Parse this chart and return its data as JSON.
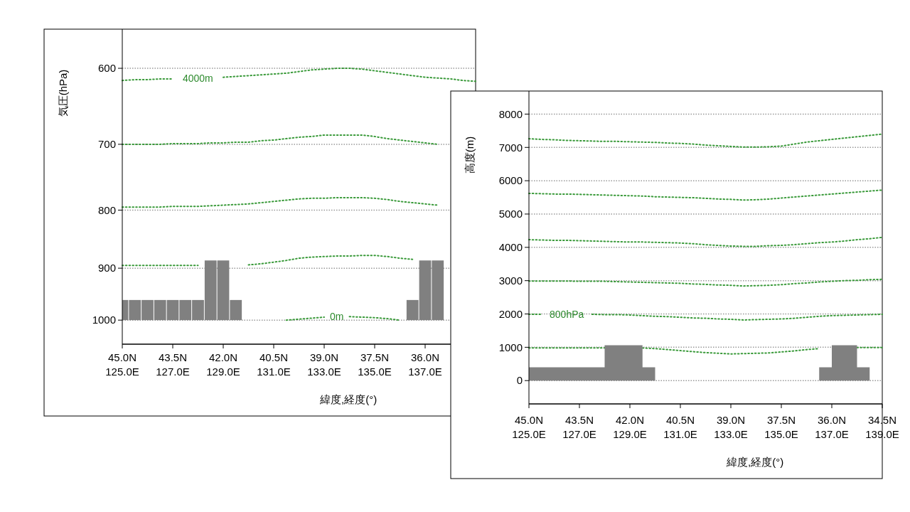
{
  "chart_data": [
    {
      "type": "line",
      "ylabel": "気圧(hPa)",
      "xlabel": "緯度,経度(°)",
      "log": true,
      "grid": "y",
      "line_style": "dotted",
      "ylim": [
        1050,
        555
      ],
      "yticks": [
        600,
        700,
        800,
        900,
        1000
      ],
      "categories": [
        "45.0N\n125.0E",
        null,
        null,
        null,
        "43.5N\n127.0E",
        null,
        null,
        null,
        "42.0N\n129.0E",
        null,
        null,
        null,
        "40.5N\n131.0E",
        null,
        null,
        null,
        "39.0N\n133.0E",
        null,
        null,
        null,
        "37.5N\n135.0E",
        null,
        null,
        null,
        "36.0N\n137.0E",
        null,
        null,
        null,
        null
      ],
      "series": [
        {
          "color": "#3a9a3a",
          "values": [
            615,
            614,
            614,
            613,
            613,
            null,
            null,
            null,
            611,
            610,
            609,
            608,
            607,
            606,
            604,
            602,
            601,
            600,
            600,
            601,
            603,
            605,
            607,
            609,
            611,
            612,
            613,
            615,
            616
          ]
        },
        {
          "color": "#3a9a3a",
          "values": [
            700,
            700,
            700,
            700,
            699,
            699,
            699,
            698,
            698,
            697,
            697,
            695,
            694,
            692,
            690,
            689,
            687,
            687,
            687,
            687,
            689,
            692,
            694,
            696,
            698,
            700,
            null,
            null,
            null
          ]
        },
        {
          "color": "#3a9a3a",
          "values": [
            795,
            795,
            795,
            795,
            794,
            794,
            794,
            793,
            792,
            791,
            790,
            788,
            786,
            784,
            782,
            781,
            781,
            780,
            780,
            780,
            781,
            783,
            786,
            788,
            790,
            792,
            null,
            null,
            null
          ]
        },
        {
          "color": "#3a9a3a",
          "values": [
            895,
            895,
            895,
            895,
            895,
            895,
            895,
            null,
            null,
            null,
            894,
            892,
            889,
            886,
            882,
            880,
            879,
            878,
            878,
            877,
            877,
            879,
            882,
            884,
            null,
            null,
            null,
            null,
            null
          ]
        },
        {
          "color": "#3a9a3a",
          "values": [
            null,
            null,
            null,
            null,
            null,
            null,
            null,
            null,
            null,
            null,
            null,
            null,
            null,
            1000,
            998,
            996,
            994,
            null,
            993,
            994,
            995,
            997,
            1000,
            null,
            null,
            null,
            null,
            null,
            null
          ]
        },
        {
          "type": "bar",
          "color": "#808080",
          "values": [
            -40,
            -40,
            -40,
            -40,
            -40,
            -40,
            -40,
            -114,
            -114,
            -40,
            null,
            null,
            null,
            null,
            null,
            null,
            null,
            null,
            null,
            null,
            null,
            null,
            null,
            -40,
            -114,
            -114,
            null,
            null,
            null
          ],
          "base": [
            1000,
            1000,
            1000,
            1000,
            1000,
            1000,
            1000,
            1000,
            1000,
            1000,
            null,
            null,
            null,
            null,
            null,
            null,
            null,
            null,
            null,
            null,
            null,
            null,
            null,
            1000,
            1000,
            1000,
            null,
            null,
            null
          ]
        }
      ],
      "annotations": [
        "4000m",
        "0m"
      ]
    },
    {
      "type": "line",
      "ylabel": "高度(m)",
      "xlabel": "緯度,経度(°)",
      "grid": "y",
      "line_style": "dotted",
      "ylim": [
        -700,
        8650
      ],
      "yticks": [
        0,
        1000,
        2000,
        3000,
        4000,
        5000,
        6000,
        7000,
        8000
      ],
      "categories": [
        "45.0N\n125.0E",
        null,
        null,
        null,
        "43.5N\n127.0E",
        null,
        null,
        null,
        "42.0N\n129.0E",
        null,
        null,
        null,
        "40.5N\n131.0E",
        null,
        null,
        null,
        "39.0N\n133.0E",
        null,
        null,
        null,
        "37.5N\n135.0E",
        null,
        null,
        null,
        "36.0N\n137.0E",
        null,
        null,
        null,
        "34.5N\n139.0E"
      ],
      "series": [
        {
          "color": "#3a9a3a",
          "values": [
            7260,
            7240,
            7230,
            7210,
            7200,
            7190,
            7180,
            7180,
            7170,
            7160,
            7150,
            7130,
            7120,
            7100,
            7070,
            7050,
            7030,
            7010,
            7010,
            7020,
            7040,
            7100,
            7160,
            7200,
            7240,
            7280,
            7320,
            7360,
            7400
          ]
        },
        {
          "color": "#3a9a3a",
          "values": [
            5620,
            5610,
            5600,
            5600,
            5590,
            5580,
            5570,
            5560,
            5550,
            5540,
            5520,
            5510,
            5500,
            5490,
            5470,
            5450,
            5440,
            5420,
            5430,
            5450,
            5480,
            5510,
            5540,
            5570,
            5600,
            5630,
            5660,
            5690,
            5720
          ]
        },
        {
          "color": "#3a9a3a",
          "values": [
            4230,
            4220,
            4210,
            4210,
            4200,
            4190,
            4180,
            4170,
            4160,
            4160,
            4150,
            4140,
            4130,
            4110,
            4080,
            4060,
            4040,
            4030,
            4030,
            4050,
            4060,
            4080,
            4110,
            4140,
            4160,
            4190,
            4230,
            4260,
            4300
          ]
        },
        {
          "color": "#3a9a3a",
          "values": [
            2990,
            2990,
            2990,
            2990,
            2980,
            2980,
            2980,
            2970,
            2960,
            2950,
            2940,
            2930,
            2920,
            2900,
            2890,
            2870,
            2860,
            2840,
            2850,
            2860,
            2880,
            2910,
            2930,
            2960,
            2980,
            3000,
            3010,
            3030,
            3040
          ]
        },
        {
          "color": "#3a9a3a",
          "values": [
            1990,
            1990,
            null,
            null,
            null,
            1990,
            1980,
            1980,
            1970,
            1950,
            1930,
            1920,
            1900,
            1880,
            1870,
            1850,
            1840,
            1820,
            1830,
            1840,
            1850,
            1870,
            1900,
            1930,
            1950,
            1960,
            1970,
            1980,
            1990
          ]
        },
        {
          "color": "#3a9a3a",
          "values": [
            980,
            980,
            980,
            980,
            980,
            980,
            980,
            null,
            null,
            980,
            960,
            930,
            900,
            870,
            840,
            820,
            800,
            810,
            820,
            830,
            860,
            890,
            930,
            960,
            null,
            null,
            990,
            990,
            990
          ]
        },
        {
          "type": "area",
          "color": "#808080",
          "values": [
            400,
            400,
            400,
            400,
            400,
            400,
            1060,
            1060,
            1060,
            400,
            0,
            null,
            null,
            null,
            null,
            null,
            null,
            null,
            null,
            null,
            null,
            null,
            0,
            400,
            1060,
            1060,
            400,
            0,
            null
          ]
        }
      ],
      "annotations": [
        "800hPa"
      ]
    }
  ]
}
